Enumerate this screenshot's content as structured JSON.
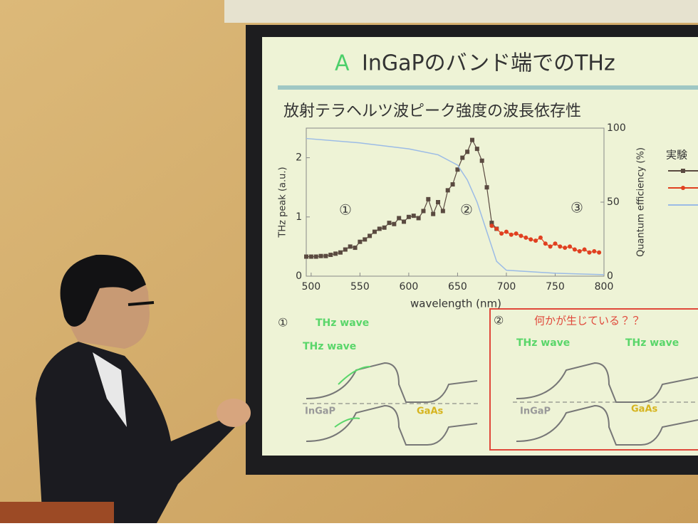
{
  "slide": {
    "title_prefix": "A",
    "title": "InGaPのバンド端でのTHz",
    "subtitle": "放射テラヘルツ波ピーク強度の波長依存性",
    "panels": [
      {
        "number": "①",
        "heading": "THz wave",
        "labels": [
          "THz wave",
          "InGaP",
          "GaAs"
        ]
      },
      {
        "number": "②",
        "heading": "何かが生じている？？",
        "labels": [
          "THz wave",
          "THz wave",
          "InGaP",
          "GaAs"
        ]
      }
    ]
  },
  "chart_data": {
    "type": "scatter",
    "x_label": "wavelength (nm)",
    "y_label": "THz peak (a.u.)",
    "y2_label": "Quantum efficiency (%)",
    "xlim": [
      495,
      800
    ],
    "xticks": [
      500,
      550,
      600,
      650,
      700,
      750,
      800
    ],
    "ylim": [
      0,
      2.5
    ],
    "yticks": [
      0,
      1,
      2
    ],
    "y2lim": [
      0,
      100
    ],
    "y2ticks": [
      0,
      50,
      100
    ],
    "annotations": [
      "①",
      "②",
      "③"
    ],
    "legend_title": "実験",
    "series": [
      {
        "color": "#5a4a40",
        "marker": "square",
        "x": [
          495,
          500,
          505,
          510,
          515,
          520,
          525,
          530,
          535,
          540,
          545,
          550,
          555,
          560,
          565,
          570,
          575,
          580,
          585,
          590,
          595,
          600,
          605,
          610,
          615,
          620,
          625,
          630,
          635,
          640,
          645,
          650,
          655,
          660,
          665,
          670,
          675,
          680,
          685,
          690
        ],
        "values": [
          0.33,
          0.33,
          0.33,
          0.34,
          0.34,
          0.36,
          0.38,
          0.4,
          0.45,
          0.5,
          0.48,
          0.58,
          0.62,
          0.68,
          0.75,
          0.8,
          0.82,
          0.9,
          0.88,
          0.98,
          0.92,
          1.0,
          1.02,
          0.98,
          1.1,
          1.3,
          1.05,
          1.25,
          1.1,
          1.45,
          1.55,
          1.8,
          2.0,
          2.1,
          2.3,
          2.15,
          1.95,
          1.5,
          0.9,
          0.8
        ]
      },
      {
        "color": "#e04020",
        "marker": "circle",
        "x": [
          685,
          690,
          695,
          700,
          705,
          710,
          715,
          720,
          725,
          730,
          735,
          740,
          745,
          750,
          755,
          760,
          765,
          770,
          775,
          780,
          785,
          790,
          795
        ],
        "values": [
          0.85,
          0.8,
          0.72,
          0.75,
          0.7,
          0.72,
          0.68,
          0.65,
          0.62,
          0.6,
          0.65,
          0.55,
          0.5,
          0.55,
          0.5,
          0.48,
          0.5,
          0.45,
          0.42,
          0.45,
          0.4,
          0.42,
          0.4
        ]
      },
      {
        "color": "#9bbbe6",
        "marker": "line",
        "axis": "y2",
        "x": [
          495,
          550,
          600,
          630,
          650,
          660,
          670,
          680,
          690,
          700,
          750,
          800
        ],
        "values": [
          93,
          90,
          86,
          82,
          75,
          65,
          50,
          30,
          10,
          4,
          2,
          1
        ]
      }
    ]
  }
}
